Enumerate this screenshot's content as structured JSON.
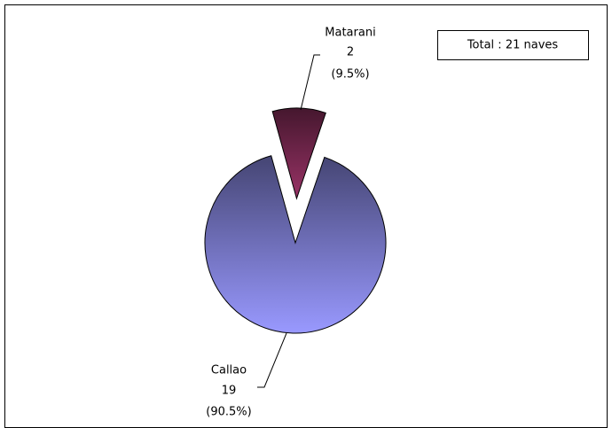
{
  "chart_data": {
    "type": "pie",
    "categories": [
      "Callao",
      "Matarani"
    ],
    "values": [
      19,
      2
    ],
    "percent_labels": [
      "(90.5%)",
      "(9.5%)"
    ],
    "colors": [
      "#9999ff",
      "#993366"
    ],
    "annotation": "Total : 21 naves"
  }
}
